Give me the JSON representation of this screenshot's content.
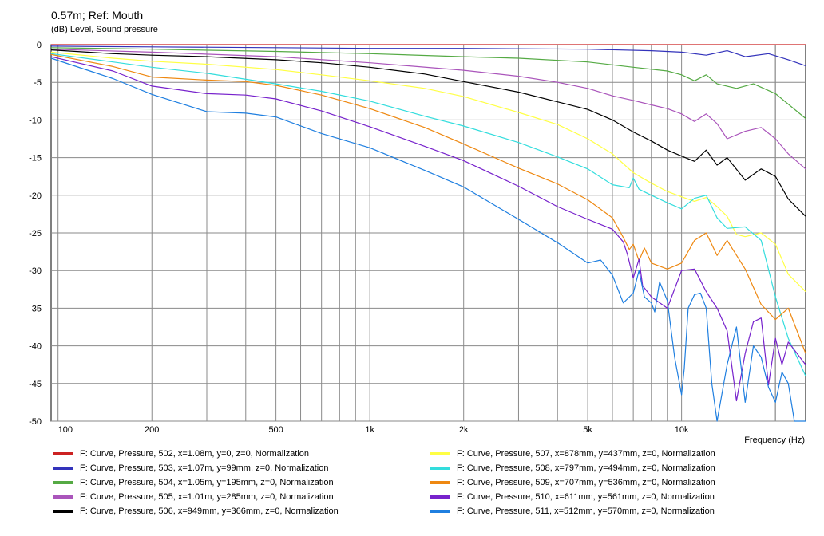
{
  "header": {
    "title": "0.57m; Ref: Mouth",
    "subtitle": "(dB)  Level, Sound pressure"
  },
  "chart_data": {
    "type": "line",
    "title": "0.57m; Ref: Mouth",
    "ylabel": "(dB)  Level, Sound pressure",
    "xlabel": "Frequency  (Hz)",
    "xscale": "log",
    "xlim": [
      95,
      25000
    ],
    "ylim": [
      -50,
      0
    ],
    "x_tick_labels": [
      {
        "value": 100,
        "label": "100"
      },
      {
        "value": 200,
        "label": "200"
      },
      {
        "value": 500,
        "label": "500"
      },
      {
        "value": 1000,
        "label": "1k"
      },
      {
        "value": 2000,
        "label": "2k"
      },
      {
        "value": 5000,
        "label": "5k"
      },
      {
        "value": 10000,
        "label": "10k"
      }
    ],
    "y_ticks": [
      0,
      -5,
      -10,
      -15,
      -20,
      -25,
      -30,
      -35,
      -40,
      -45,
      -50
    ],
    "grid": true,
    "legend_position": "bottom",
    "series": [
      {
        "name": "F: Curve, Pressure, 502, x=1.08m, y=0, z=0, Normalization",
        "color": "#cc2222",
        "x": [
          95,
          25000
        ],
        "y": [
          0,
          0
        ]
      },
      {
        "name": "F: Curve, Pressure, 503, x=1.07m, y=99mm, z=0, Normalization",
        "color": "#3333bb",
        "x": [
          95,
          200,
          500,
          1000,
          2000,
          5000,
          8000,
          10000,
          12000,
          14000,
          16000,
          19000,
          22000,
          25000
        ],
        "y": [
          -0.2,
          -0.3,
          -0.4,
          -0.5,
          -0.5,
          -0.6,
          -0.8,
          -1.0,
          -1.4,
          -0.8,
          -1.6,
          -1.2,
          -2.0,
          -2.8
        ]
      },
      {
        "name": "F: Curve, Pressure, 504, x=1.05m, y=195mm, z=0, Normalization",
        "color": "#55aa44",
        "x": [
          95,
          200,
          500,
          1000,
          2000,
          3000,
          5000,
          7000,
          9000,
          10000,
          11000,
          12000,
          13000,
          15000,
          17000,
          20000,
          25000
        ],
        "y": [
          -0.4,
          -0.6,
          -0.9,
          -1.2,
          -1.6,
          -1.8,
          -2.3,
          -3.0,
          -3.5,
          -4.0,
          -4.8,
          -4.0,
          -5.2,
          -5.8,
          -5.2,
          -6.5,
          -9.8
        ]
      },
      {
        "name": "F: Curve, Pressure, 505, x=1.01m, y=285mm, z=0, Normalization",
        "color": "#aa55bb",
        "x": [
          95,
          200,
          500,
          1000,
          2000,
          3000,
          4000,
          5000,
          6000,
          7000,
          8000,
          9000,
          10000,
          11000,
          12000,
          13000,
          14000,
          16000,
          18000,
          20000,
          22000,
          25000
        ],
        "y": [
          -0.6,
          -1.0,
          -1.6,
          -2.4,
          -3.4,
          -4.2,
          -5.0,
          -5.8,
          -6.8,
          -7.4,
          -8.0,
          -8.5,
          -9.2,
          -10.2,
          -9.2,
          -10.5,
          -12.5,
          -11.5,
          -11.0,
          -12.5,
          -14.5,
          -16.5
        ]
      },
      {
        "name": "F: Curve, Pressure, 506, x=949mm, y=366mm, z=0, Normalization",
        "color": "#000000",
        "x": [
          95,
          150,
          200,
          300,
          500,
          700,
          1000,
          1500,
          2000,
          3000,
          4000,
          5000,
          6000,
          7000,
          8000,
          9000,
          10000,
          11000,
          12000,
          13000,
          14000,
          16000,
          18000,
          20000,
          22000,
          25000
        ],
        "y": [
          -0.7,
          -1.2,
          -1.4,
          -1.6,
          -2.0,
          -2.4,
          -3.0,
          -3.9,
          -4.9,
          -6.3,
          -7.6,
          -8.6,
          -10.0,
          -11.6,
          -12.8,
          -14.0,
          -14.8,
          -15.5,
          -14.0,
          -16.0,
          -15.0,
          -18.0,
          -16.5,
          -17.5,
          -20.5,
          -22.8
        ]
      },
      {
        "name": "F: Curve, Pressure, 507, x=878mm, y=437mm, z=0, Normalization",
        "color": "#ffff44",
        "x": [
          95,
          150,
          200,
          300,
          500,
          700,
          1000,
          1500,
          2000,
          3000,
          4000,
          5000,
          6000,
          7000,
          8000,
          9000,
          10000,
          11000,
          12000,
          13000,
          14000,
          15000,
          16000,
          18000,
          20000,
          22000,
          25000
        ],
        "y": [
          -1.0,
          -1.8,
          -2.2,
          -2.6,
          -3.3,
          -4.0,
          -4.8,
          -5.8,
          -6.9,
          -9.0,
          -10.6,
          -12.5,
          -14.5,
          -17.0,
          -18.4,
          -19.5,
          -20.2,
          -20.8,
          -20.3,
          -21.5,
          -22.8,
          -25.2,
          -25.5,
          -25.0,
          -26.5,
          -30.5,
          -32.8
        ]
      },
      {
        "name": "F: Curve, Pressure, 508, x=797mm, y=494mm, z=0, Normalization",
        "color": "#33dddd",
        "x": [
          95,
          150,
          200,
          300,
          500,
          700,
          1000,
          1500,
          2000,
          3000,
          4000,
          5000,
          6000,
          6800,
          7000,
          7300,
          8000,
          9000,
          10000,
          11000,
          12000,
          13000,
          14000,
          16000,
          18000,
          20000,
          22000,
          25000
        ],
        "y": [
          -1.2,
          -2.3,
          -3.0,
          -3.8,
          -5.2,
          -6.2,
          -7.5,
          -9.5,
          -10.8,
          -13.0,
          -14.9,
          -16.5,
          -18.6,
          -19.0,
          -17.7,
          -19.2,
          -20.0,
          -21.0,
          -21.8,
          -20.4,
          -20.0,
          -23.0,
          -24.4,
          -24.2,
          -26.0,
          -33.5,
          -39.0,
          -44.0
        ]
      },
      {
        "name": "F: Curve, Pressure, 509, x=707mm, y=536mm, z=0, Normalization",
        "color": "#ee8811",
        "x": [
          95,
          150,
          200,
          300,
          400,
          500,
          700,
          1000,
          1500,
          2000,
          3000,
          4000,
          5000,
          6000,
          6500,
          6800,
          7000,
          7300,
          7600,
          8000,
          9000,
          10000,
          11000,
          12000,
          13000,
          14000,
          16000,
          18000,
          20000,
          22000,
          25000
        ],
        "y": [
          -1.3,
          -2.9,
          -4.3,
          -4.7,
          -4.9,
          -5.4,
          -6.7,
          -8.5,
          -11.0,
          -13.2,
          -16.4,
          -18.5,
          -20.6,
          -23.0,
          -25.6,
          -27.2,
          -26.5,
          -28.7,
          -27.0,
          -29.0,
          -29.8,
          -29.0,
          -26.0,
          -25.0,
          -28.0,
          -26.0,
          -29.8,
          -34.5,
          -36.5,
          -35.0,
          -41.0
        ]
      },
      {
        "name": "F: Curve, Pressure, 510, x=611mm, y=561mm, z=0, Normalization",
        "color": "#7722cc",
        "x": [
          95,
          150,
          200,
          300,
          400,
          500,
          700,
          1000,
          1500,
          2000,
          3000,
          4000,
          5000,
          6000,
          6500,
          6700,
          7000,
          7300,
          7500,
          8000,
          9000,
          10000,
          11000,
          12000,
          13000,
          14000,
          15000,
          16000,
          17000,
          18000,
          19000,
          20000,
          21000,
          22000,
          25000
        ],
        "y": [
          -1.6,
          -3.5,
          -5.5,
          -6.5,
          -6.7,
          -7.2,
          -8.8,
          -10.9,
          -13.5,
          -15.4,
          -18.8,
          -21.5,
          -23.2,
          -24.5,
          -26.2,
          -27.8,
          -31.0,
          -28.5,
          -32.0,
          -33.5,
          -35.0,
          -30.0,
          -29.8,
          -32.8,
          -35.0,
          -38.0,
          -47.3,
          -41.0,
          -36.8,
          -36.3,
          -45.2,
          -39.0,
          -42.5,
          -39.5,
          -42.5
        ]
      },
      {
        "name": "F: Curve, Pressure, 511, x=512mm, y=570mm, z=0, Normalization",
        "color": "#1f7fe0",
        "x": [
          95,
          150,
          200,
          300,
          400,
          500,
          700,
          1000,
          1500,
          2000,
          3000,
          4000,
          5000,
          5500,
          6000,
          6500,
          7000,
          7300,
          7600,
          8000,
          8200,
          8500,
          9000,
          9500,
          10000,
          10200,
          10500,
          11000,
          11500,
          12000,
          12500,
          13000,
          14000,
          15000,
          16000,
          17000,
          18000,
          19000,
          20000,
          21000,
          22000,
          23000,
          24000,
          25000
        ],
        "y": [
          -1.8,
          -4.5,
          -6.6,
          -8.9,
          -9.1,
          -9.6,
          -11.8,
          -13.7,
          -16.7,
          -18.9,
          -23.2,
          -26.3,
          -29.0,
          -28.6,
          -30.6,
          -34.3,
          -33.0,
          -30.0,
          -33.5,
          -34.3,
          -35.5,
          -31.5,
          -34.0,
          -41.5,
          -46.5,
          -43.0,
          -35.0,
          -33.2,
          -33.0,
          -35.0,
          -45.0,
          -50.0,
          -42.5,
          -37.5,
          -47.5,
          -40.0,
          -41.5,
          -45.5,
          -47.5,
          -43.5,
          -45.0,
          -50.0,
          -50.0,
          -50.0
        ]
      }
    ]
  }
}
